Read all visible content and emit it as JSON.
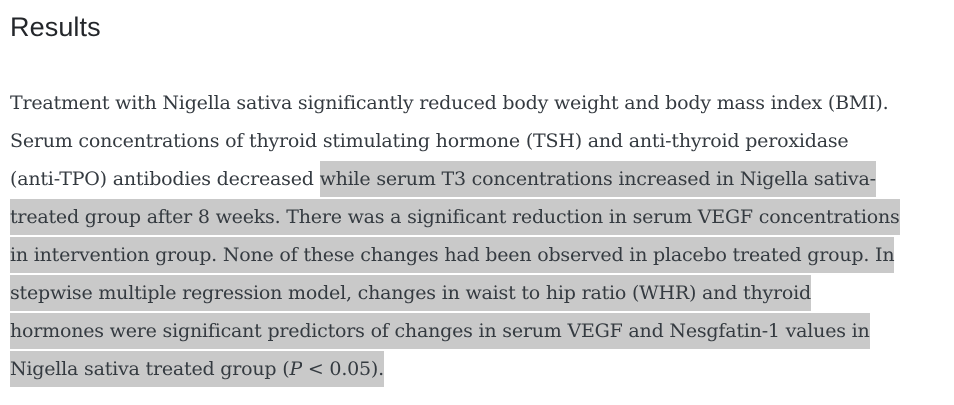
{
  "colors": {
    "background": "#ffffff",
    "heading_text": "#23262a",
    "body_text": "#343a40",
    "selection_highlight": "#c9c9c9"
  },
  "heading": {
    "title": "Results"
  },
  "paragraph": {
    "lines": [
      {
        "segments": [
          {
            "text": "Treatment with Nigella sativa significantly reduced body weight and body mass index (BMI).",
            "highlighted": false
          }
        ]
      },
      {
        "segments": [
          {
            "text": "Serum concentrations of thyroid stimulating hormone (TSH) and anti-thyroid peroxidase",
            "highlighted": false
          }
        ]
      },
      {
        "segments": [
          {
            "text": "(anti-TPO) antibodies decreased ",
            "highlighted": false
          },
          {
            "text": "while serum T3 concentrations increased in Nigella sativa-",
            "highlighted": true
          }
        ]
      },
      {
        "segments": [
          {
            "text": "treated group after 8 weeks. There was a significant reduction in serum VEGF concentrations",
            "highlighted": true
          }
        ]
      },
      {
        "segments": [
          {
            "text": "in intervention group. None of these changes had been observed in placebo treated group. In",
            "highlighted": true
          }
        ]
      },
      {
        "segments": [
          {
            "text": "stepwise multiple regression model, changes in waist to hip ratio (WHR) and thyroid",
            "highlighted": true
          }
        ]
      },
      {
        "segments": [
          {
            "text": "hormones were significant predictors of changes in serum VEGF and Nesgfatin-1 values in",
            "highlighted": true
          }
        ]
      },
      {
        "segments": [
          {
            "text": "Nigella sativa treated group (",
            "highlighted": true
          },
          {
            "text": "P",
            "highlighted": true,
            "italic": true
          },
          {
            "text": " < 0.05).",
            "highlighted": true
          }
        ]
      }
    ]
  }
}
